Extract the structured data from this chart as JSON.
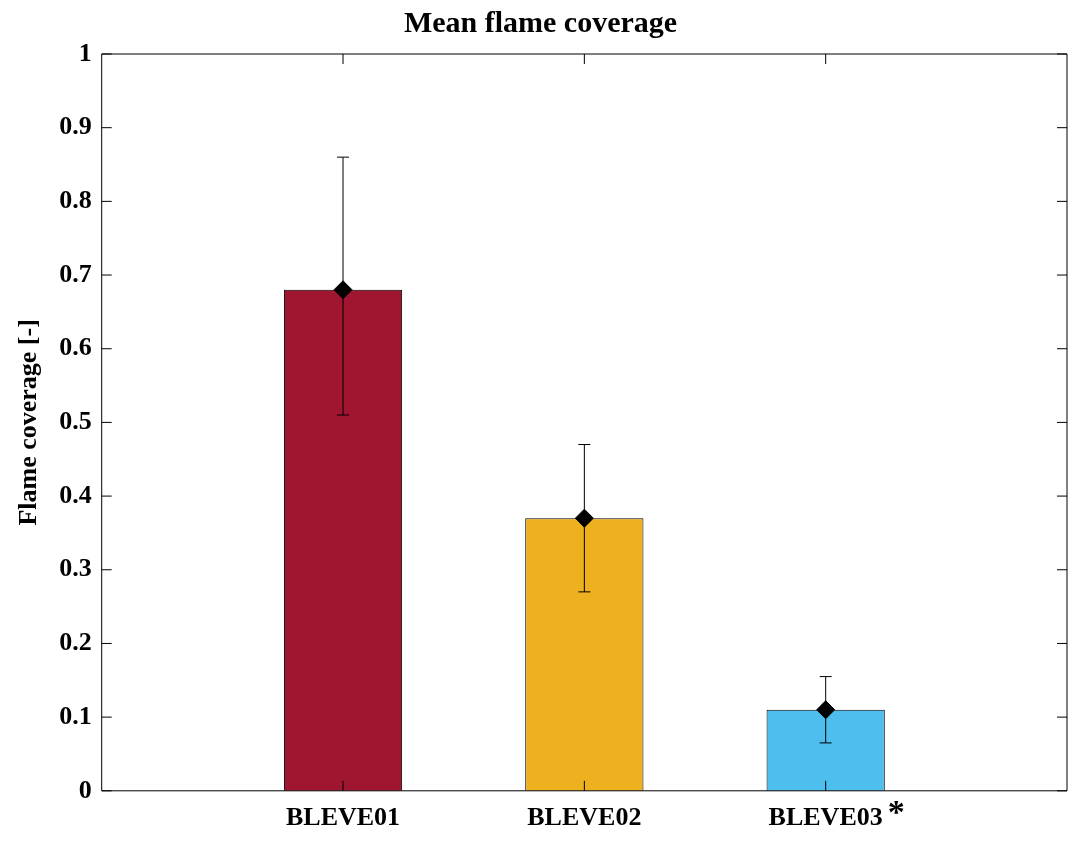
{
  "chart_data": {
    "type": "bar",
    "title": "Mean flame coverage",
    "ylabel": "Flame coverage [-]",
    "categories": [
      null,
      "BLEVE01",
      "BLEVE02",
      "BLEVE03",
      null
    ],
    "series": [
      {
        "values": [
          null,
          0.68,
          0.37,
          0.11,
          null
        ],
        "colors": [
          "#a0152f",
          "#a0152f",
          "#edb120",
          "#4dbeee",
          "#4dbeee"
        ]
      },
      {
        "type": "scatter",
        "x": [
          "BLEVE01",
          "BLEVE02",
          "BLEVE03"
        ],
        "values": [
          0.68,
          0.37,
          0.11
        ],
        "color": "#000000",
        "marker": "diamond",
        "errors": [
          [
            0.51,
            0.86
          ],
          [
            0.27,
            0.47
          ],
          [
            0.065,
            0.155
          ]
        ]
      }
    ],
    "ylim": [
      0,
      1
    ],
    "yticks": [
      0,
      0.1,
      0.2,
      0.3,
      0.4,
      0.5,
      0.6,
      0.7,
      0.8,
      0.9,
      1
    ],
    "grid": false,
    "legend": false,
    "annotations": [
      "*"
    ]
  }
}
